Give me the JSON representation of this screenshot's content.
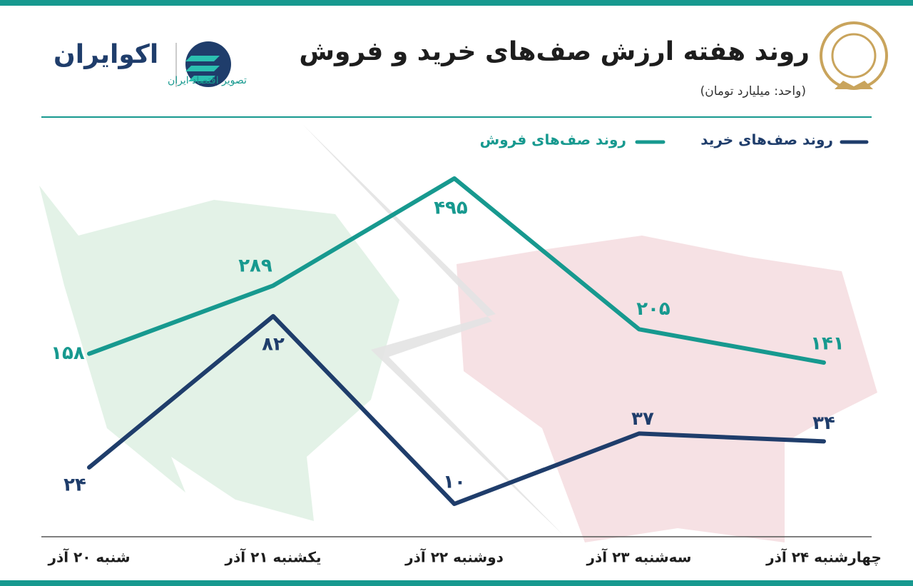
{
  "brand": {
    "name": "اکوایران",
    "tagline": "تصویر اقتصاد ایران"
  },
  "chart_data": {
    "type": "line",
    "title": "روند هفته ارزش صف‌های خرید و فروش",
    "subtitle": "(واحد: میلیارد تومان)",
    "categories": [
      "شنبه ۲۰ آذر",
      "یکشنبه ۲۱ آذر",
      "دوشنبه ۲۲ آذر",
      "سه‌شنبه ۲۳ آذر",
      "چهارشنبه ۲۴ آذر"
    ],
    "series": [
      {
        "name": "روند صف‌های خرید",
        "color": "#1f3d6b",
        "values": [
          24,
          82,
          10,
          37,
          34
        ],
        "value_labels": [
          "۲۴",
          "۸۲",
          "۱۰",
          "۳۷",
          "۳۴"
        ]
      },
      {
        "name": "روند صف‌های فروش",
        "color": "#17998f",
        "values": [
          158,
          289,
          495,
          205,
          141
        ],
        "value_labels": [
          "۱۵۸",
          "۲۸۹",
          "۴۹۵",
          "۲۰۵",
          "۱۴۱"
        ]
      }
    ]
  }
}
